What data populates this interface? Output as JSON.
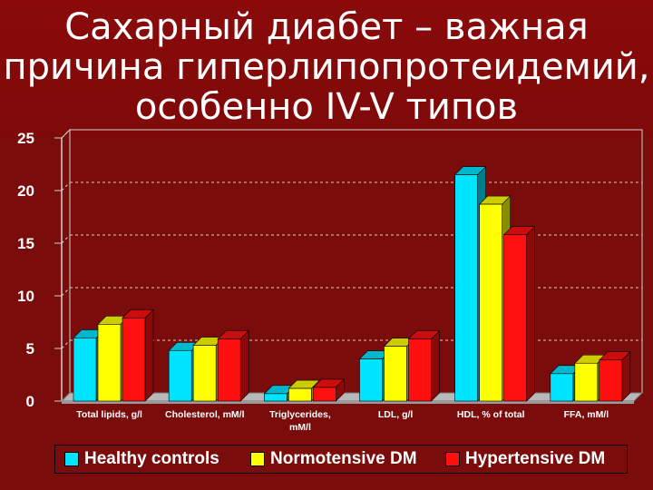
{
  "slide": {
    "title_lines": [
      "Сахарный диабет – важная",
      "причина гиперлипопротеидемий,",
      "особенно IV-V типов"
    ]
  },
  "colors": {
    "background": "#7a0c0c",
    "healthy": "#00e5ff",
    "normotensive": "#ffff00",
    "hypertensive": "#ff1010"
  },
  "chart_data": {
    "type": "bar",
    "categories": [
      "Total lipids, g/l",
      "Cholesterol, mM/l",
      "Triglycerides, mM/l",
      "LDL, g/l",
      "HDL, % of total",
      "FFA, mM/l"
    ],
    "series": [
      {
        "name": "Healthy controls",
        "color": "#00e5ff",
        "values": [
          6.0,
          4.8,
          0.7,
          4.0,
          21.5,
          2.6
        ]
      },
      {
        "name": "Normotensive DM",
        "color": "#ffff00",
        "values": [
          7.3,
          5.3,
          1.2,
          5.2,
          18.7,
          3.6
        ]
      },
      {
        "name": "Hypertensive DM",
        "color": "#ff1010",
        "values": [
          7.9,
          5.9,
          1.3,
          5.9,
          15.8,
          3.9
        ]
      }
    ],
    "yticks": [
      "0",
      "5",
      "10",
      "15",
      "20",
      "25"
    ],
    "ylim": [
      0,
      25
    ],
    "grid": true,
    "style": "3d",
    "legend_position": "bottom"
  }
}
